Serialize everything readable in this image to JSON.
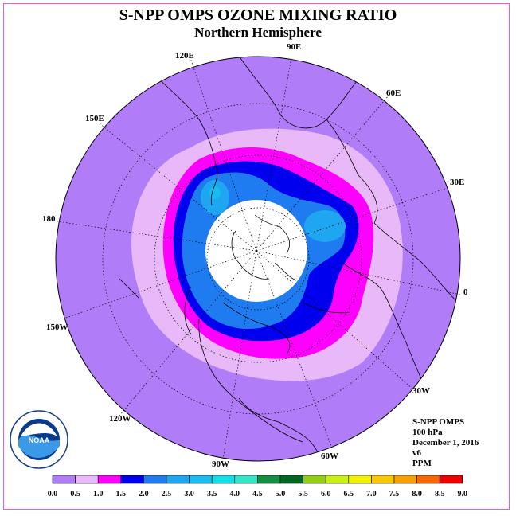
{
  "header": {
    "title": "S-NPP OMPS OZONE MIXING RATIO",
    "subtitle": "Northern Hemisphere"
  },
  "map": {
    "projection": "north polar stereographic",
    "longitude_labels": [
      "90E",
      "60E",
      "30E",
      "0",
      "30W",
      "60W",
      "90W",
      "120W",
      "150W",
      "180",
      "150E",
      "120E"
    ],
    "rings_fill_colors": [
      "#b07cf8",
      "#e8b8f8",
      "#ff00ff",
      "#0000ee",
      "#1e7cf0",
      "#1ea6f0",
      "#ffffff"
    ],
    "no_data_color": "#ffffff",
    "ocean_land_outline_color": "#000000"
  },
  "info": {
    "line1": "S-NPP OMPS",
    "line2": "100 hPa",
    "line3": "December 1, 2016",
    "line4": "v6",
    "line5": "PPM"
  },
  "legend": {
    "ticks": [
      "0.0",
      "0.5",
      "1.0",
      "1.5",
      "2.0",
      "2.5",
      "3.0",
      "3.5",
      "4.0",
      "4.5",
      "5.0",
      "5.5",
      "6.0",
      "6.5",
      "7.0",
      "7.5",
      "8.0",
      "8.5",
      "9.0"
    ],
    "colors": [
      "#b07cf8",
      "#e8b8f8",
      "#ff00ff",
      "#0000ee",
      "#1e7cf0",
      "#1ea6f0",
      "#14bef0",
      "#10e0e8",
      "#30e8c8",
      "#109040",
      "#006820",
      "#90d010",
      "#c8f010",
      "#f0f000",
      "#f8c800",
      "#f8a000",
      "#f86800",
      "#f00000",
      "#a05030",
      "#7a4a30"
    ]
  },
  "logo": {
    "text": "NOAA",
    "ring_text": "NATIONAL OCEANIC AND ATMOSPHERIC ADMINISTRATION · U.S. DEPARTMENT OF COMMERCE"
  }
}
